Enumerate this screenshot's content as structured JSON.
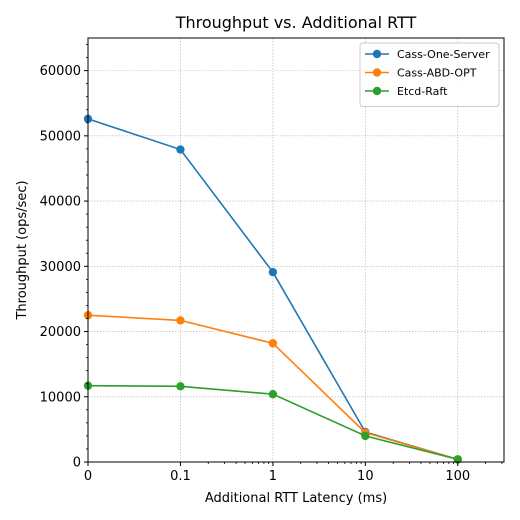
{
  "chart_data": {
    "type": "line",
    "title": "Throughput vs. Additional RTT",
    "xlabel": "Additional RTT Latency (ms)",
    "ylabel": "Throughput (ops/sec)",
    "x_scale": "symlog",
    "x": [
      0,
      0.1,
      1,
      10,
      100
    ],
    "x_tick_labels": [
      "0",
      "0.1",
      "1",
      "10",
      "100"
    ],
    "ylim": [
      0,
      65000
    ],
    "y_ticks": [
      0,
      10000,
      20000,
      30000,
      40000,
      50000,
      60000
    ],
    "y_tick_labels": [
      "0",
      "10000",
      "20000",
      "30000",
      "40000",
      "50000",
      "60000"
    ],
    "grid": true,
    "legend_position": "top-right",
    "series": [
      {
        "name": "Cass-One-Server",
        "color": "#1f77b4",
        "values": [
          52600,
          47900,
          29100,
          4600,
          400
        ]
      },
      {
        "name": "Cass-ABD-OPT",
        "color": "#ff7f0e",
        "values": [
          22500,
          21700,
          18200,
          4500,
          400
        ]
      },
      {
        "name": "Etcd-Raft",
        "color": "#2ca02c",
        "values": [
          11700,
          11600,
          10400,
          4000,
          400
        ]
      }
    ]
  }
}
